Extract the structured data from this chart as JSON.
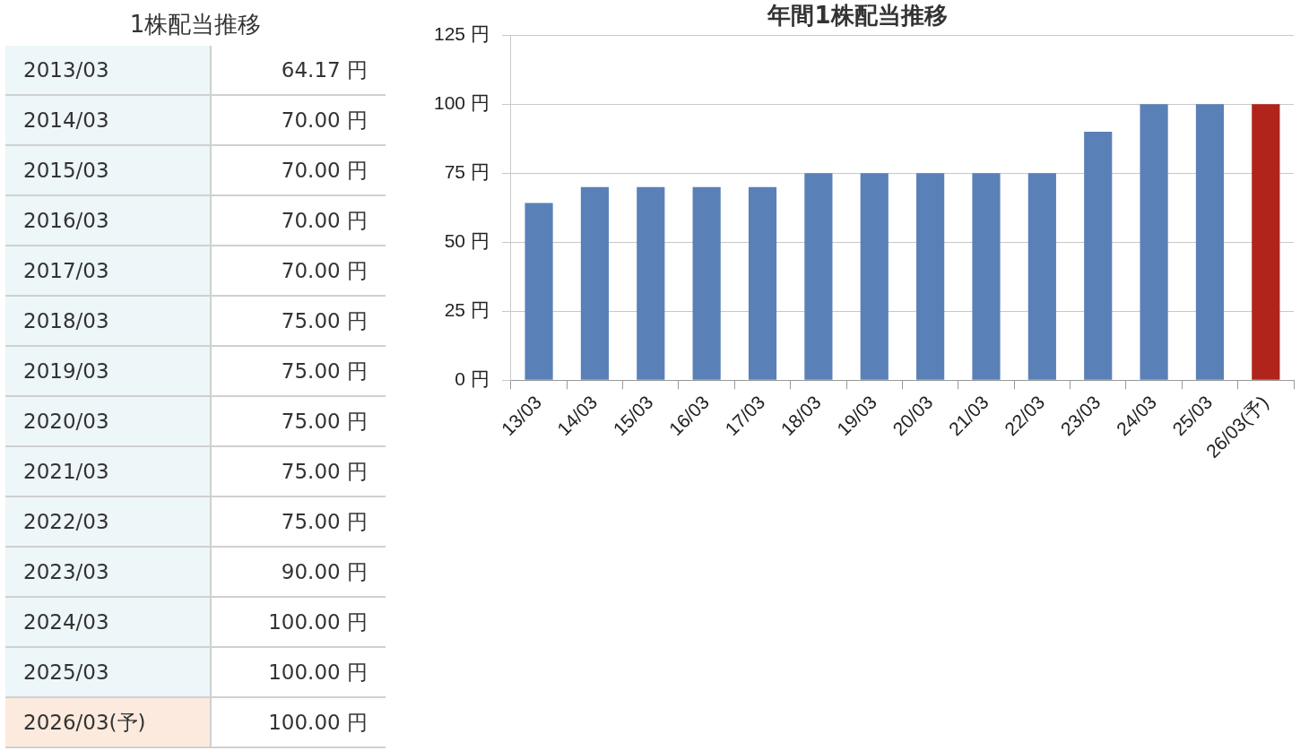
{
  "chart_data": [
    {
      "type": "other",
      "title": "1株配当推移",
      "categories": [
        "2013/03",
        "2014/03",
        "2015/03",
        "2016/03",
        "2017/03",
        "2018/03",
        "2019/03",
        "2020/03",
        "2021/03",
        "2022/03",
        "2023/03",
        "2024/03",
        "2025/03",
        "2026/03(予)"
      ],
      "value_labels": [
        "64.17 円",
        "70.00 円",
        "70.00 円",
        "70.00 円",
        "70.00 円",
        "75.00 円",
        "75.00 円",
        "75.00 円",
        "75.00 円",
        "75.00 円",
        "90.00 円",
        "100.00 円",
        "100.00 円",
        "100.00 円"
      ],
      "colors": [
        "#edf6f8",
        "#edf6f8",
        "#edf6f8",
        "#edf6f8",
        "#edf6f8",
        "#edf6f8",
        "#edf6f8",
        "#edf6f8",
        "#edf6f8",
        "#edf6f8",
        "#edf6f8",
        "#edf6f8",
        "#edf6f8",
        "#fbeadd"
      ]
    },
    {
      "type": "bar",
      "title": "年間1株配当推移",
      "categories": [
        "13/03",
        "14/03",
        "15/03",
        "16/03",
        "17/03",
        "18/03",
        "19/03",
        "20/03",
        "21/03",
        "22/03",
        "23/03",
        "24/03",
        "25/03",
        "26/03(予)"
      ],
      "values": [
        64.17,
        70,
        70,
        70,
        70,
        75,
        75,
        75,
        75,
        75,
        90,
        100,
        100,
        100
      ],
      "colors": [
        "#5a80b8",
        "#5a80b8",
        "#5a80b8",
        "#5a80b8",
        "#5a80b8",
        "#5a80b8",
        "#5a80b8",
        "#5a80b8",
        "#5a80b8",
        "#5a80b8",
        "#5a80b8",
        "#5a80b8",
        "#5a80b8",
        "#b0241b"
      ],
      "ylim": [
        0,
        125
      ],
      "yticks": [
        {
          "value": 0,
          "label": "0 円"
        },
        {
          "value": 25,
          "label": "25 円"
        },
        {
          "value": 50,
          "label": "50 円"
        },
        {
          "value": 75,
          "label": "75 円"
        },
        {
          "value": 100,
          "label": "100 円"
        },
        {
          "value": 125,
          "label": "125 円"
        }
      ],
      "grid": "y",
      "legend": false
    }
  ]
}
